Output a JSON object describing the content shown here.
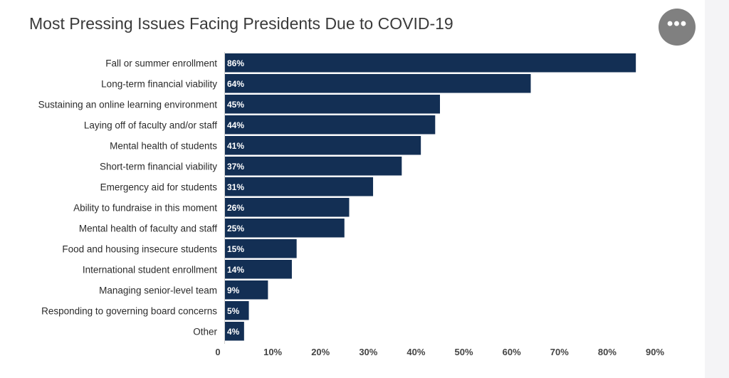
{
  "title": "Most Pressing Issues Facing Presidents Due to COVID-19",
  "more_button_icon": "more-horizontal-icon",
  "more_button_glyph": "•••",
  "chart_data": {
    "type": "bar",
    "orientation": "horizontal",
    "title": "Most Pressing Issues Facing Presidents Due to COVID-19",
    "categories": [
      "Fall or summer enrollment",
      "Long-term financial viability",
      "Sustaining an online learning environment",
      "Laying off of faculty and/or staff",
      "Mental health of students",
      "Short-term financial viability",
      "Emergency aid for students",
      "Ability to fundraise in this moment",
      "Mental health of faculty and staff",
      "Food and housing insecure students",
      "International student enrollment",
      "Managing senior-level team",
      "Responding to governing board concerns",
      "Other"
    ],
    "values": [
      86,
      64,
      45,
      44,
      41,
      37,
      31,
      26,
      25,
      15,
      14,
      9,
      5,
      4
    ],
    "value_labels": [
      "86%",
      "64%",
      "45%",
      "44%",
      "41%",
      "37%",
      "31%",
      "26%",
      "25%",
      "15%",
      "14%",
      "9%",
      "5%",
      "4%"
    ],
    "xlim": [
      0,
      90
    ],
    "xticks": [
      0,
      10,
      20,
      30,
      40,
      50,
      60,
      70,
      80,
      90
    ],
    "xtick_labels": [
      "0",
      "10%",
      "20%",
      "30%",
      "40%",
      "50%",
      "60%",
      "70%",
      "80%",
      "90%"
    ],
    "bar_color": "#132f54",
    "grid": false,
    "legend": "none"
  }
}
